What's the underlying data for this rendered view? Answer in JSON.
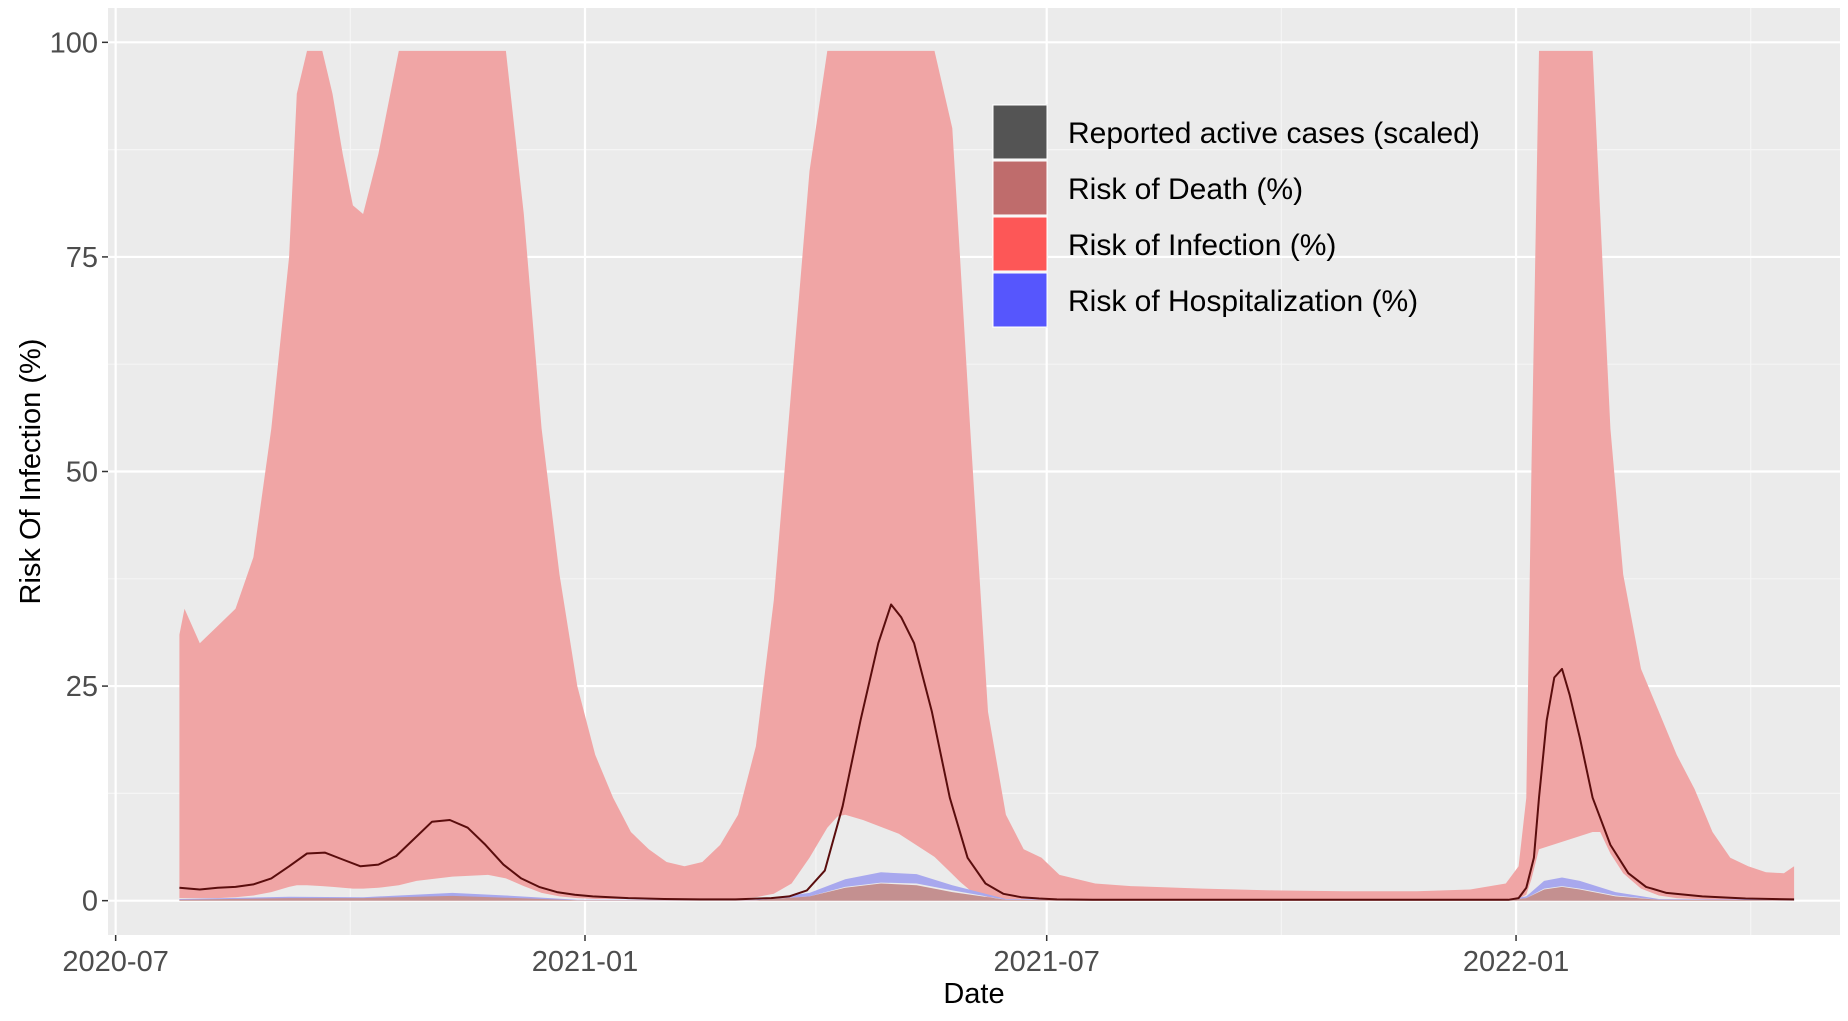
{
  "chart_data": {
    "type": "area",
    "xlabel": "Date",
    "ylabel": "Risk Of Infection (%)",
    "ylim": [
      -4,
      104
    ],
    "xlim": [
      "2020-06-28",
      "2022-05-08"
    ],
    "grid": true,
    "legend_position": "top-center",
    "y_ticks": [
      0,
      25,
      50,
      75,
      100
    ],
    "y_tick_labels": [
      "0",
      "25",
      "50",
      "75",
      "100"
    ],
    "x_ticks": [
      "2020-07-01",
      "2021-01-01",
      "2021-07-01",
      "2022-01-01"
    ],
    "x_tick_labels": [
      "2020-07",
      "2021-01",
      "2021-07",
      "2022-01"
    ],
    "legend": [
      {
        "label": "Reported active cases (scaled)",
        "color": "#545454"
      },
      {
        "label": "Risk of Death (%)",
        "color": "#bf6c6c"
      },
      {
        "label": "Risk of Infection (%)",
        "color": "#fd5757"
      },
      {
        "label": "Risk of Hospitalization (%)",
        "color": "#5656fd"
      }
    ],
    "series": [
      {
        "name": "Risk of Infection (%)",
        "kind": "band",
        "color": "#f0a5a5",
        "x": [
          "2020-07-26",
          "2020-07-28",
          "2020-08-03",
          "2020-08-10",
          "2020-08-17",
          "2020-08-24",
          "2020-08-31",
          "2020-09-07",
          "2020-09-10",
          "2020-09-14",
          "2020-09-20",
          "2020-09-24",
          "2020-09-28",
          "2020-10-02",
          "2020-10-06",
          "2020-10-12",
          "2020-10-20",
          "2020-10-27",
          "2020-11-10",
          "2020-11-24",
          "2020-12-01",
          "2020-12-08",
          "2020-12-15",
          "2020-12-22",
          "2020-12-29",
          "2021-01-05",
          "2021-01-12",
          "2021-01-19",
          "2021-01-26",
          "2021-02-02",
          "2021-02-09",
          "2021-02-16",
          "2021-02-23",
          "2021-03-02",
          "2021-03-09",
          "2021-03-16",
          "2021-03-23",
          "2021-03-30",
          "2021-04-06",
          "2021-04-10",
          "2021-04-13",
          "2021-04-20",
          "2021-05-04",
          "2021-05-18",
          "2021-05-25",
          "2021-05-28",
          "2021-06-01",
          "2021-06-08",
          "2021-06-15",
          "2021-06-22",
          "2021-06-29",
          "2021-07-06",
          "2021-07-20",
          "2021-08-03",
          "2021-08-31",
          "2021-09-28",
          "2021-10-26",
          "2021-11-23",
          "2021-12-14",
          "2021-12-28",
          "2022-01-02",
          "2022-01-05",
          "2022-01-07",
          "2022-01-10",
          "2022-01-31",
          "2022-02-03",
          "2022-02-07",
          "2022-02-12",
          "2022-02-19",
          "2022-02-26",
          "2022-03-05",
          "2022-03-12",
          "2022-03-19",
          "2022-03-26",
          "2022-04-02",
          "2022-04-09",
          "2022-04-16",
          "2022-04-20"
        ],
        "y_high": [
          31,
          34,
          30,
          32,
          34,
          40,
          55,
          75,
          94,
          99,
          99,
          94,
          87,
          81,
          80,
          87,
          99,
          99,
          99,
          99,
          99,
          80,
          55,
          38,
          25,
          17,
          12,
          8,
          6,
          4.5,
          4,
          4.5,
          6.5,
          10,
          18,
          35,
          60,
          85,
          99,
          99,
          99,
          99,
          99,
          99,
          90,
          75,
          55,
          22,
          10,
          6,
          5,
          3,
          2,
          1.7,
          1.4,
          1.2,
          1.1,
          1.1,
          1.3,
          2,
          4,
          12,
          50,
          99,
          99,
          80,
          55,
          38,
          27,
          22,
          17,
          13,
          8,
          5,
          4,
          3.3,
          3.2,
          4
        ],
        "y_low": [
          0.3,
          0.3,
          0.3,
          0.3,
          0.4,
          0.6,
          1,
          1.6,
          1.8,
          1.8,
          1.7,
          1.6,
          1.5,
          1.4,
          1.4,
          1.5,
          1.8,
          2.3,
          2.8,
          3,
          2.6,
          1.7,
          0.9,
          0.5,
          0.3,
          0.2,
          0.2,
          0.2,
          0.1,
          0.1,
          0.1,
          0.1,
          0.1,
          0.2,
          0.4,
          0.8,
          2,
          5,
          8.5,
          9.8,
          10,
          9.4,
          7.8,
          5.1,
          3.1,
          2.2,
          1.2,
          0.4,
          0.2,
          0.2,
          0.1,
          0.1,
          0.1,
          0.1,
          0.1,
          0.1,
          0.1,
          0.1,
          0.1,
          0.1,
          0.2,
          0.7,
          2.5,
          6,
          8,
          8,
          5.5,
          3.2,
          1.4,
          0.6,
          0.3,
          0.2,
          0.1,
          0.1,
          0.1,
          0.1,
          0.1,
          0.1
        ]
      },
      {
        "name": "Risk of Hospitalization (%)",
        "kind": "band",
        "color": "#a8a8ee",
        "x": [
          "2020-07-26",
          "2020-09-07",
          "2020-10-06",
          "2020-11-10",
          "2020-12-01",
          "2020-12-29",
          "2021-03-09",
          "2021-03-30",
          "2021-04-13",
          "2021-04-27",
          "2021-05-11",
          "2021-05-25",
          "2021-06-15",
          "2021-12-28",
          "2022-01-05",
          "2022-01-12",
          "2022-01-19",
          "2022-01-26",
          "2022-02-09",
          "2022-02-26",
          "2022-04-20"
        ],
        "y_high": [
          0.2,
          0.45,
          0.4,
          0.9,
          0.6,
          0.1,
          0.1,
          0.9,
          2.5,
          3.3,
          3.1,
          1.8,
          0.2,
          0.1,
          0.5,
          2.3,
          2.7,
          2.3,
          1,
          0.2,
          0.1
        ],
        "y_low": [
          0.05,
          0.15,
          0.15,
          0.3,
          0.2,
          0.05,
          0.05,
          0.5,
          1.6,
          2.1,
          2,
          1.2,
          0.1,
          0.05,
          0.3,
          1.4,
          1.7,
          1.4,
          0.6,
          0.1,
          0.05
        ]
      },
      {
        "name": "Risk of Death (%)",
        "kind": "band",
        "color": "#c49090",
        "x": [
          "2020-07-26",
          "2020-09-07",
          "2020-10-06",
          "2020-11-10",
          "2020-12-01",
          "2020-12-29",
          "2021-03-09",
          "2021-03-30",
          "2021-04-13",
          "2021-04-27",
          "2021-05-11",
          "2021-05-25",
          "2021-06-15",
          "2021-12-28",
          "2022-01-05",
          "2022-01-12",
          "2022-01-19",
          "2022-01-26",
          "2022-02-09",
          "2022-02-26",
          "2022-04-20"
        ],
        "y_high": [
          0.1,
          0.3,
          0.3,
          0.55,
          0.35,
          0.05,
          0.05,
          0.5,
          1.5,
          2,
          1.8,
          1,
          0.1,
          0.05,
          0.3,
          1.3,
          1.6,
          1.3,
          0.5,
          0.1,
          0.05
        ],
        "y_low": [
          0,
          0,
          0,
          0,
          0,
          0,
          0,
          0,
          0,
          0,
          0,
          0,
          0,
          0,
          0,
          0,
          0,
          0,
          0,
          0,
          0
        ]
      },
      {
        "name": "Reported active cases (scaled)",
        "kind": "line",
        "color": "#5a0d0d",
        "x": [
          "2020-07-26",
          "2020-08-03",
          "2020-08-10",
          "2020-08-17",
          "2020-08-24",
          "2020-08-31",
          "2020-09-07",
          "2020-09-14",
          "2020-09-21",
          "2020-09-28",
          "2020-10-05",
          "2020-10-12",
          "2020-10-19",
          "2020-10-26",
          "2020-11-02",
          "2020-11-09",
          "2020-11-16",
          "2020-11-23",
          "2020-11-30",
          "2020-12-07",
          "2020-12-14",
          "2020-12-21",
          "2020-12-28",
          "2021-01-04",
          "2021-01-11",
          "2021-01-18",
          "2021-02-01",
          "2021-02-15",
          "2021-03-01",
          "2021-03-15",
          "2021-03-22",
          "2021-03-29",
          "2021-04-05",
          "2021-04-12",
          "2021-04-19",
          "2021-04-26",
          "2021-05-01",
          "2021-05-05",
          "2021-05-10",
          "2021-05-17",
          "2021-05-24",
          "2021-05-31",
          "2021-06-07",
          "2021-06-14",
          "2021-06-21",
          "2021-06-28",
          "2021-07-05",
          "2021-07-19",
          "2021-08-16",
          "2021-10-01",
          "2021-12-01",
          "2021-12-29",
          "2022-01-02",
          "2022-01-05",
          "2022-01-08",
          "2022-01-10",
          "2022-01-13",
          "2022-01-16",
          "2022-01-19",
          "2022-01-22",
          "2022-01-26",
          "2022-01-31",
          "2022-02-07",
          "2022-02-14",
          "2022-02-21",
          "2022-03-01",
          "2022-03-15",
          "2022-04-01",
          "2022-04-20"
        ],
        "y": [
          1.5,
          1.3,
          1.5,
          1.6,
          1.9,
          2.6,
          4,
          5.5,
          5.6,
          4.8,
          4,
          4.2,
          5.2,
          7.2,
          9.2,
          9.4,
          8.5,
          6.5,
          4.2,
          2.6,
          1.6,
          1.0,
          0.7,
          0.5,
          0.4,
          0.3,
          0.2,
          0.15,
          0.15,
          0.3,
          0.5,
          1.2,
          3.5,
          11,
          21,
          30,
          34.5,
          33,
          30,
          22,
          12,
          5,
          2,
          0.8,
          0.4,
          0.25,
          0.15,
          0.1,
          0.1,
          0.1,
          0.1,
          0.1,
          0.3,
          1.5,
          5,
          12,
          21,
          26,
          27,
          24,
          19,
          12,
          6.5,
          3.2,
          1.6,
          0.9,
          0.5,
          0.25,
          0.15
        ]
      }
    ]
  }
}
